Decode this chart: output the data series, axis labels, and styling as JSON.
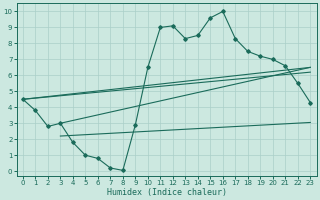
{
  "xlabel": "Humidex (Indice chaleur)",
  "xlim": [
    -0.5,
    23.5
  ],
  "ylim": [
    -0.3,
    10.5
  ],
  "xticks": [
    0,
    1,
    2,
    3,
    4,
    5,
    6,
    7,
    8,
    9,
    10,
    11,
    12,
    13,
    14,
    15,
    16,
    17,
    18,
    19,
    20,
    21,
    22,
    23
  ],
  "yticks": [
    0,
    1,
    2,
    3,
    4,
    5,
    6,
    7,
    8,
    9,
    10
  ],
  "bg_color": "#cce8e0",
  "line_color": "#1a6b5a",
  "grid_color": "#aacfc8",
  "main_x": [
    0,
    1,
    2,
    3,
    4,
    5,
    6,
    7,
    8,
    9,
    10,
    11,
    12,
    13,
    14,
    15,
    16,
    17,
    18,
    19,
    20,
    21,
    22,
    23
  ],
  "main_y": [
    4.5,
    3.8,
    2.8,
    3.0,
    1.8,
    1.0,
    0.8,
    0.2,
    0.05,
    2.9,
    6.5,
    9.0,
    9.1,
    8.3,
    8.5,
    9.6,
    10.0,
    8.3,
    7.5,
    7.2,
    7.0,
    6.6,
    5.5,
    4.3
  ],
  "env_lines": [
    {
      "x": [
        0,
        23
      ],
      "y": [
        4.5,
        6.5
      ]
    },
    {
      "x": [
        0,
        23
      ],
      "y": [
        4.5,
        6.2
      ]
    },
    {
      "x": [
        3,
        23
      ],
      "y": [
        3.0,
        6.5
      ]
    },
    {
      "x": [
        3,
        23
      ],
      "y": [
        2.2,
        3.05
      ]
    }
  ]
}
